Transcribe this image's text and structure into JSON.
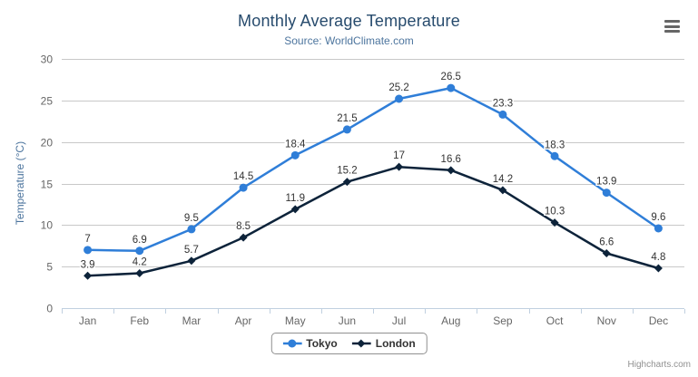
{
  "chart_data": {
    "type": "line",
    "title": "Monthly Average Temperature",
    "subtitle": "Source: WorldClimate.com",
    "categories": [
      "Jan",
      "Feb",
      "Mar",
      "Apr",
      "May",
      "Jun",
      "Jul",
      "Aug",
      "Sep",
      "Oct",
      "Nov",
      "Dec"
    ],
    "series": [
      {
        "name": "Tokyo",
        "color": "#2f7ed8",
        "marker": "circle",
        "values": [
          7,
          6.9,
          9.5,
          14.5,
          18.4,
          21.5,
          25.2,
          26.5,
          23.3,
          18.3,
          13.9,
          9.6
        ],
        "labels": [
          "7",
          "6.9",
          "9.5",
          "14.5",
          "18.4",
          "21.5",
          "25.2",
          "26.5",
          "23.3",
          "18.3",
          "13.9",
          "9.6"
        ]
      },
      {
        "name": "London",
        "color": "#0d233a",
        "marker": "diamond",
        "values": [
          3.9,
          4.2,
          5.7,
          8.5,
          11.9,
          15.2,
          17,
          16.6,
          14.2,
          10.3,
          6.6,
          4.8
        ],
        "labels": [
          "3.9",
          "4.2",
          "5.7",
          "8.5",
          "11.9",
          "15.2",
          "17",
          "16.6",
          "14.2",
          "10.3",
          "6.6",
          "4.8"
        ]
      }
    ],
    "xlabel": "",
    "ylabel": "Temperature (°C)",
    "ylim": [
      0,
      30
    ],
    "ytick_interval": 5,
    "yticks": [
      "0",
      "5",
      "10",
      "15",
      "20",
      "25",
      "30"
    ],
    "grid": true,
    "legend_position": "bottom",
    "data_labels": true
  },
  "credits": "Highcharts.com",
  "icons": {
    "menu": "hamburger-menu-icon"
  },
  "colors": {
    "background": "#ffffff",
    "title": "#274b6d",
    "subtitle": "#4d759e",
    "axis_title": "#4d759e",
    "axis_labels": "#666666",
    "grid_line": "#c8c8c8",
    "axis_line": "#c0d0e0",
    "tick": "#c0d0e0",
    "data_label": "#333333",
    "legend_text": "#333333",
    "legend_border": "#909090",
    "credits": "#909090",
    "menu_icon": "#666666"
  }
}
